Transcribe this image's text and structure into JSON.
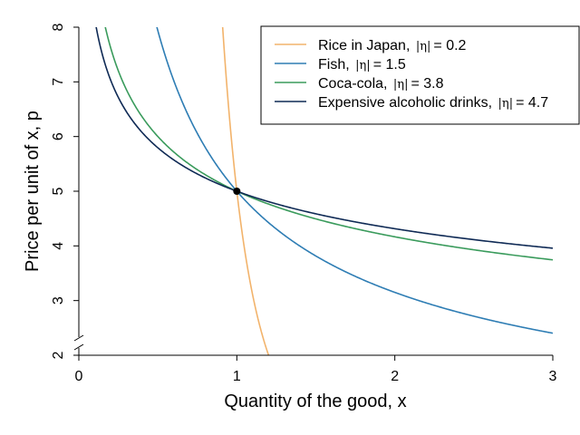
{
  "chart_data": {
    "type": "line",
    "xlabel": "Quantity of the good, x",
    "ylabel": "Price per unit of x, p",
    "xlim": [
      0,
      3
    ],
    "ylim": [
      2,
      8
    ],
    "x_ticks": [
      "0",
      "1",
      "2",
      "3"
    ],
    "y_ticks": [
      "2",
      "3",
      "4",
      "5",
      "6",
      "7",
      "8"
    ],
    "y_axis_break": true,
    "grid": false,
    "legend_position": "top-right",
    "curve_form": "p = 5 * x^(-1/|eta|)",
    "reference_point": {
      "x": 1,
      "y": 5
    },
    "series": [
      {
        "name": "Rice in Japan, ",
        "eta_symbol": "|η|",
        "eq_value": "= 0.2",
        "elasticity": 0.2,
        "color": "#F2B36B"
      },
      {
        "name": "Fish, ",
        "eta_symbol": "|η|",
        "eq_value": "= 1.5",
        "elasticity": 1.5,
        "color": "#2E7DB4"
      },
      {
        "name": "Coca-cola, ",
        "eta_symbol": "|η|",
        "eq_value": "= 3.8",
        "elasticity": 3.8,
        "color": "#3A9B5C"
      },
      {
        "name": "Expensive alcoholic drinks, ",
        "eta_symbol": "|η|",
        "eq_value": "= 4.7",
        "elasticity": 4.7,
        "color": "#0F2A55"
      }
    ]
  }
}
